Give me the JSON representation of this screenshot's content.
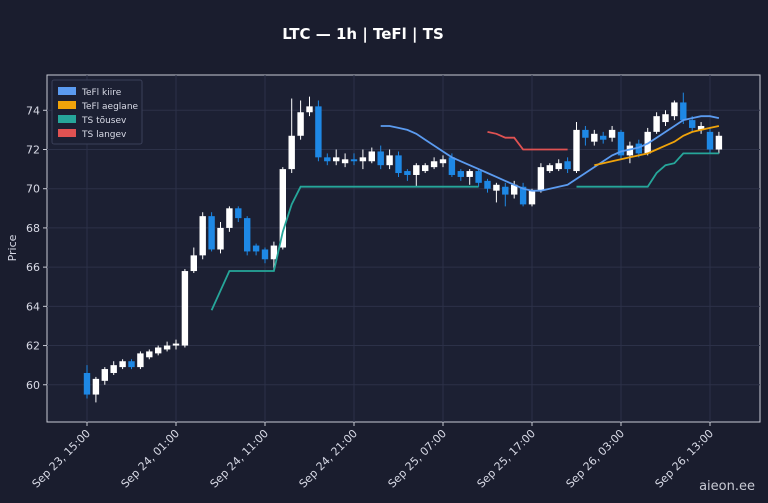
{
  "chart_data": {
    "type": "candlestick",
    "title": "LTC — 1h  |  TeFl  |  TS",
    "y_label": "Price",
    "watermark": "aieon.ee",
    "categories": [
      "Sep 23, 15:00",
      null,
      null,
      null,
      null,
      null,
      null,
      null,
      null,
      null,
      "Sep 24, 01:00",
      null,
      null,
      null,
      null,
      null,
      null,
      null,
      null,
      null,
      "Sep 24, 11:00",
      null,
      null,
      null,
      null,
      null,
      null,
      null,
      null,
      null,
      "Sep 24, 21:00",
      null,
      null,
      null,
      null,
      null,
      null,
      null,
      null,
      null,
      "Sep 25, 07:00",
      null,
      null,
      null,
      null,
      null,
      null,
      null,
      null,
      null,
      "Sep 25, 17:00",
      null,
      null,
      null,
      null,
      null,
      null,
      null,
      null,
      null,
      "Sep 26, 03:00",
      null,
      null,
      null,
      null,
      null,
      null,
      null,
      null,
      null,
      "Sep 26, 13:00",
      null
    ],
    "open": [
      60.6,
      59.5,
      60.2,
      60.6,
      60.9,
      61.2,
      60.9,
      61.4,
      61.6,
      61.8,
      62.0,
      62.0,
      65.8,
      66.6,
      68.6,
      66.9,
      68.0,
      69.0,
      68.5,
      67.1,
      66.9,
      66.4,
      67.0,
      71.0,
      72.7,
      73.9,
      74.2,
      71.6,
      71.4,
      71.3,
      71.5,
      71.4,
      71.4,
      71.9,
      71.2,
      71.7,
      70.9,
      70.7,
      70.9,
      71.1,
      71.3,
      71.6,
      70.9,
      70.6,
      70.9,
      70.4,
      69.9,
      70.1,
      69.7,
      70.1,
      69.2,
      69.9,
      70.9,
      71.0,
      71.4,
      70.9,
      73.0,
      72.4,
      72.7,
      72.6,
      72.9,
      71.7,
      72.3,
      71.8,
      72.9,
      73.4,
      73.7,
      74.4,
      73.5,
      73.0,
      72.9,
      72.0
    ],
    "high": [
      61.0,
      60.4,
      60.9,
      61.2,
      61.3,
      61.3,
      61.7,
      61.8,
      62.0,
      62.2,
      62.3,
      65.9,
      67.0,
      68.8,
      68.8,
      68.3,
      69.1,
      69.1,
      68.6,
      67.2,
      67.0,
      67.3,
      71.1,
      74.6,
      74.5,
      74.7,
      74.5,
      71.8,
      72.0,
      71.8,
      71.8,
      72.0,
      72.1,
      72.2,
      72.0,
      71.9,
      71.0,
      71.3,
      71.3,
      71.6,
      71.7,
      71.8,
      71.0,
      71.0,
      71.0,
      70.5,
      70.3,
      70.3,
      70.4,
      70.3,
      70.0,
      71.3,
      71.3,
      71.5,
      71.6,
      73.4,
      73.2,
      73.0,
      72.9,
      73.2,
      73.0,
      72.4,
      72.5,
      73.1,
      73.9,
      74.0,
      74.5,
      74.9,
      73.7,
      73.4,
      73.1,
      72.9
    ],
    "low": [
      59.3,
      59.1,
      60.0,
      60.5,
      60.8,
      60.8,
      60.8,
      61.3,
      61.5,
      61.7,
      61.8,
      61.9,
      65.7,
      66.4,
      66.8,
      66.7,
      67.8,
      68.3,
      66.6,
      66.6,
      66.2,
      65.8,
      66.9,
      70.8,
      72.5,
      73.7,
      71.4,
      71.2,
      71.2,
      71.1,
      71.2,
      71.0,
      71.3,
      71.0,
      71.0,
      70.6,
      70.4,
      70.1,
      70.8,
      71.0,
      71.1,
      70.6,
      70.4,
      70.2,
      70.1,
      69.8,
      69.3,
      69.1,
      69.5,
      69.1,
      69.1,
      69.8,
      70.8,
      70.9,
      70.8,
      70.8,
      72.2,
      72.2,
      72.3,
      72.4,
      71.5,
      71.3,
      71.6,
      71.7,
      72.8,
      73.2,
      73.5,
      73.3,
      72.9,
      72.8,
      71.8,
      71.8
    ],
    "close": [
      59.5,
      60.3,
      60.8,
      61.0,
      61.2,
      60.9,
      61.6,
      61.7,
      61.9,
      62.0,
      62.1,
      65.8,
      66.6,
      68.6,
      66.9,
      68.0,
      69.0,
      68.5,
      66.8,
      66.8,
      66.4,
      67.1,
      71.0,
      72.7,
      73.9,
      74.2,
      71.6,
      71.4,
      71.6,
      71.5,
      71.4,
      71.6,
      71.9,
      71.2,
      71.7,
      70.8,
      70.7,
      71.2,
      71.2,
      71.4,
      71.5,
      70.7,
      70.6,
      70.9,
      70.3,
      70.0,
      70.2,
      69.7,
      70.2,
      69.2,
      69.9,
      71.1,
      71.2,
      71.3,
      71.0,
      73.0,
      72.6,
      72.8,
      72.5,
      73.0,
      71.7,
      72.2,
      71.8,
      72.9,
      73.7,
      73.8,
      74.4,
      73.5,
      73.1,
      73.2,
      72.0,
      72.7
    ],
    "up_color": "#ffffff",
    "down_color": "#1e88e5",
    "series": [
      {
        "name": "TeFl kiire",
        "color": "#5b9bf0",
        "values": [
          null,
          null,
          null,
          null,
          null,
          null,
          null,
          null,
          null,
          null,
          null,
          null,
          null,
          null,
          null,
          null,
          null,
          null,
          null,
          null,
          null,
          null,
          null,
          null,
          null,
          null,
          null,
          null,
          null,
          null,
          null,
          null,
          null,
          73.2,
          73.2,
          73.1,
          73.0,
          72.8,
          72.5,
          72.2,
          71.9,
          71.6,
          71.4,
          71.2,
          71.0,
          70.8,
          70.6,
          70.4,
          70.2,
          70.0,
          69.9,
          69.9,
          70.0,
          70.1,
          70.2,
          70.5,
          70.8,
          71.1,
          71.4,
          71.7,
          71.9,
          72.0,
          72.1,
          72.3,
          72.6,
          72.9,
          73.2,
          73.5,
          73.6,
          73.7,
          73.7,
          73.6
        ]
      },
      {
        "name": "TeFl aeglane",
        "color": "#f0a30a",
        "values": [
          null,
          null,
          null,
          null,
          null,
          null,
          null,
          null,
          null,
          null,
          null,
          null,
          null,
          null,
          null,
          null,
          null,
          null,
          null,
          null,
          null,
          null,
          null,
          null,
          null,
          null,
          null,
          null,
          null,
          null,
          null,
          null,
          null,
          null,
          null,
          null,
          null,
          null,
          null,
          null,
          null,
          null,
          null,
          null,
          null,
          null,
          null,
          null,
          null,
          null,
          null,
          null,
          null,
          null,
          null,
          null,
          null,
          71.2,
          71.3,
          71.4,
          71.5,
          71.6,
          71.7,
          71.8,
          72.0,
          72.2,
          72.4,
          72.7,
          72.9,
          73.0,
          73.1,
          73.2
        ]
      },
      {
        "name": "TS tõusev",
        "color": "#26a69a",
        "values": [
          null,
          null,
          null,
          null,
          null,
          null,
          null,
          null,
          null,
          null,
          null,
          null,
          null,
          null,
          63.8,
          64.8,
          65.8,
          65.8,
          65.8,
          65.8,
          65.8,
          65.8,
          67.8,
          69.2,
          70.1,
          70.1,
          70.1,
          70.1,
          70.1,
          70.1,
          70.1,
          70.1,
          70.1,
          70.1,
          70.1,
          70.1,
          70.1,
          70.1,
          70.1,
          70.1,
          70.1,
          70.1,
          70.1,
          70.1,
          70.1,
          null,
          null,
          null,
          null,
          null,
          null,
          null,
          null,
          null,
          null,
          70.1,
          70.1,
          70.1,
          70.1,
          70.1,
          70.1,
          70.1,
          70.1,
          70.1,
          70.8,
          71.2,
          71.3,
          71.8,
          71.8,
          71.8,
          71.8,
          71.8
        ]
      },
      {
        "name": "TS langev",
        "color": "#e05252",
        "values": [
          null,
          null,
          null,
          null,
          null,
          null,
          null,
          null,
          null,
          null,
          null,
          null,
          null,
          null,
          null,
          null,
          null,
          null,
          null,
          null,
          null,
          null,
          null,
          null,
          null,
          null,
          null,
          null,
          null,
          null,
          null,
          null,
          null,
          null,
          null,
          null,
          null,
          null,
          null,
          null,
          null,
          null,
          null,
          null,
          null,
          72.9,
          72.8,
          72.6,
          72.6,
          72.0,
          72.0,
          72.0,
          72.0,
          72.0,
          72.0,
          null,
          null,
          null,
          null,
          null,
          null,
          null,
          null,
          null,
          null,
          null,
          null,
          null,
          null,
          null,
          null,
          null
        ]
      }
    ],
    "ylim": [
      58.1,
      75.8
    ],
    "yticks": [
      60,
      62,
      64,
      66,
      68,
      70,
      72,
      74
    ],
    "grid": true,
    "legend": "upper left"
  }
}
